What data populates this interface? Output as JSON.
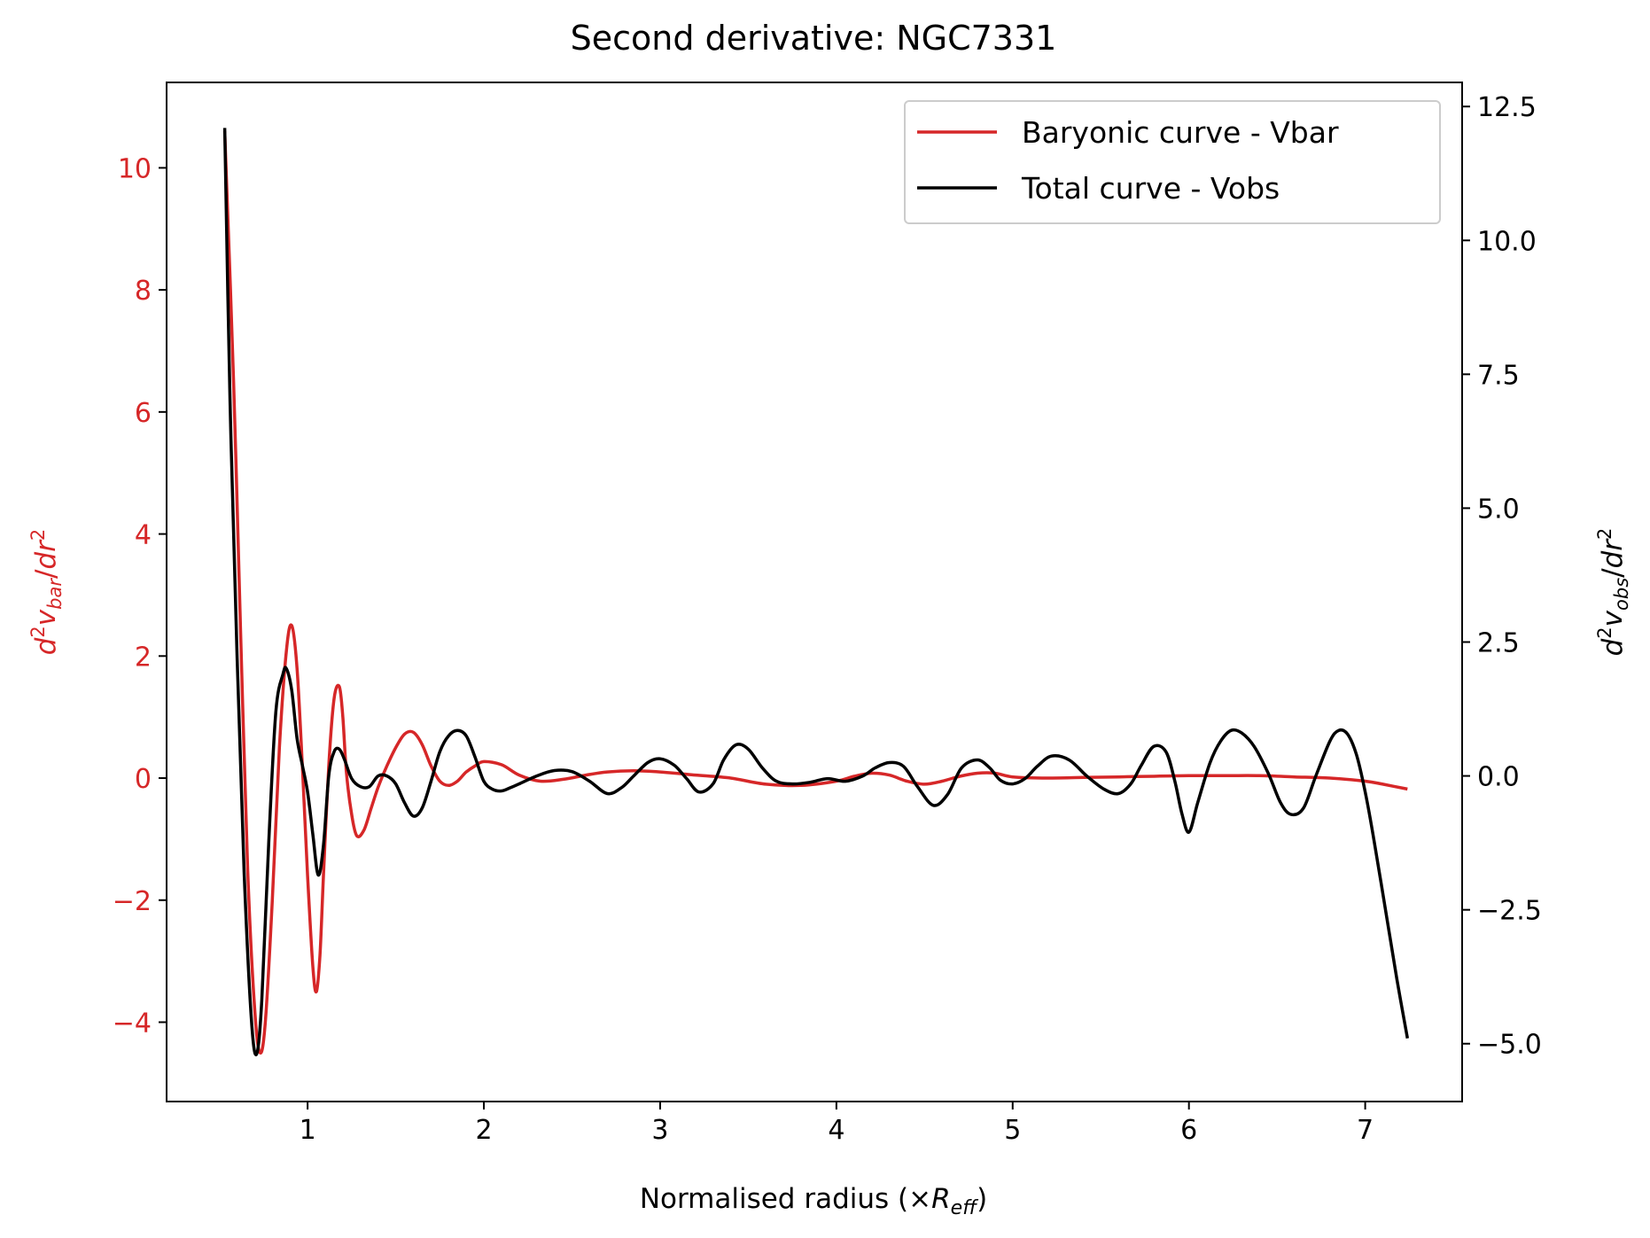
{
  "chart_data": {
    "type": "line",
    "title": "Second derivative: NGC7331",
    "xlabel": "Normalised radius (×R_eff)",
    "xlabel_parts": {
      "prefix": "Normalised radius (×",
      "var": "R",
      "sub": "eff",
      "suffix": ")"
    },
    "ylabel_left": "d²v_bar/dr²",
    "ylabel_right": "d²v_obs/dr²",
    "xlim": [
      0.2,
      7.55
    ],
    "ylim_left": [
      -5.3,
      11.4
    ],
    "ylim_right": [
      -6.08,
      12.95
    ],
    "x_ticks": [
      "1",
      "2",
      "3",
      "4",
      "5",
      "6",
      "7"
    ],
    "y_ticks_left": [
      "−4",
      "−2",
      "0",
      "2",
      "4",
      "6",
      "8",
      "10"
    ],
    "y_ticks_right": [
      "−5.0",
      "−2.5",
      "0.0",
      "2.5",
      "5.0",
      "7.5",
      "10.0",
      "12.5"
    ],
    "grid": false,
    "legend_position": "upper right",
    "colors": {
      "vbar": "#d62728",
      "vobs": "#000000",
      "left_axis": "#d62728"
    },
    "series": [
      {
        "name": "Baryonic curve - Vbar",
        "axis": "left",
        "color": "#d62728",
        "x": [
          0.53,
          0.58,
          0.62,
          0.66,
          0.7,
          0.73,
          0.76,
          0.8,
          0.84,
          0.88,
          0.91,
          0.94,
          0.97,
          1.0,
          1.03,
          1.05,
          1.07,
          1.09,
          1.12,
          1.15,
          1.18,
          1.2,
          1.22,
          1.25,
          1.28,
          1.32,
          1.36,
          1.4,
          1.45,
          1.5,
          1.55,
          1.6,
          1.65,
          1.7,
          1.75,
          1.8,
          1.85,
          1.9,
          1.95,
          2.0,
          2.1,
          2.2,
          2.32,
          2.45,
          2.58,
          2.7,
          2.85,
          3.0,
          3.2,
          3.4,
          3.6,
          3.8,
          4.0,
          4.1,
          4.2,
          4.3,
          4.4,
          4.5,
          4.6,
          4.7,
          4.8,
          4.9,
          5.0,
          5.2,
          5.4,
          5.6,
          5.8,
          6.0,
          6.2,
          6.4,
          6.6,
          6.8,
          7.0,
          7.1,
          7.24
        ],
        "y": [
          10.6,
          6.5,
          2.4,
          -1.5,
          -3.8,
          -4.5,
          -4.0,
          -2.0,
          0.5,
          2.1,
          2.5,
          1.8,
          0.2,
          -1.6,
          -3.1,
          -3.5,
          -2.9,
          -1.6,
          0.2,
          1.3,
          1.5,
          1.0,
          0.1,
          -0.6,
          -0.95,
          -0.85,
          -0.5,
          -0.15,
          0.2,
          0.5,
          0.72,
          0.75,
          0.55,
          0.2,
          -0.05,
          -0.12,
          -0.05,
          0.1,
          0.2,
          0.27,
          0.22,
          0.05,
          -0.05,
          -0.02,
          0.05,
          0.1,
          0.12,
          0.1,
          0.05,
          0.0,
          -0.1,
          -0.12,
          -0.05,
          0.03,
          0.08,
          0.05,
          -0.05,
          -0.1,
          -0.05,
          0.03,
          0.08,
          0.08,
          0.02,
          0.0,
          0.01,
          0.02,
          0.03,
          0.04,
          0.04,
          0.04,
          0.02,
          0.0,
          -0.05,
          -0.1,
          -0.18
        ]
      },
      {
        "name": "Total curve - Vobs",
        "axis": "right",
        "color": "#000000",
        "x": [
          0.53,
          0.56,
          0.6,
          0.64,
          0.68,
          0.71,
          0.74,
          0.78,
          0.82,
          0.86,
          0.88,
          0.91,
          0.94,
          0.97,
          1.0,
          1.03,
          1.06,
          1.09,
          1.12,
          1.15,
          1.18,
          1.21,
          1.25,
          1.3,
          1.35,
          1.4,
          1.45,
          1.5,
          1.55,
          1.6,
          1.65,
          1.7,
          1.75,
          1.8,
          1.85,
          1.9,
          1.95,
          2.0,
          2.05,
          2.1,
          2.15,
          2.2,
          2.3,
          2.4,
          2.5,
          2.6,
          2.7,
          2.78,
          2.85,
          2.93,
          3.0,
          3.08,
          3.15,
          3.22,
          3.3,
          3.36,
          3.43,
          3.5,
          3.58,
          3.66,
          3.75,
          3.85,
          3.95,
          4.05,
          4.15,
          4.22,
          4.3,
          4.38,
          4.46,
          4.55,
          4.63,
          4.71,
          4.8,
          4.87,
          4.93,
          5.0,
          5.07,
          5.14,
          5.22,
          5.32,
          5.42,
          5.52,
          5.6,
          5.67,
          5.73,
          5.8,
          5.87,
          5.92,
          5.96,
          6.0,
          6.05,
          6.12,
          6.18,
          6.24,
          6.3,
          6.37,
          6.45,
          6.52,
          6.58,
          6.65,
          6.72,
          6.8,
          6.85,
          6.9,
          6.95,
          7.0,
          7.05,
          7.12,
          7.18,
          7.24
        ],
        "y": [
          12.1,
          7.0,
          2.2,
          -1.8,
          -4.5,
          -5.2,
          -4.2,
          -1.2,
          1.2,
          1.9,
          2.0,
          1.6,
          0.7,
          0.2,
          -0.3,
          -1.1,
          -1.85,
          -1.3,
          0.0,
          0.45,
          0.5,
          0.3,
          -0.05,
          -0.2,
          -0.2,
          0.0,
          0.0,
          -0.15,
          -0.5,
          -0.75,
          -0.6,
          -0.1,
          0.45,
          0.75,
          0.85,
          0.75,
          0.35,
          -0.1,
          -0.25,
          -0.28,
          -0.22,
          -0.15,
          0.0,
          0.1,
          0.08,
          -0.1,
          -0.33,
          -0.22,
          0.0,
          0.25,
          0.32,
          0.2,
          -0.05,
          -0.3,
          -0.15,
          0.3,
          0.58,
          0.5,
          0.15,
          -0.1,
          -0.15,
          -0.12,
          -0.05,
          -0.1,
          0.0,
          0.15,
          0.25,
          0.18,
          -0.2,
          -0.55,
          -0.35,
          0.15,
          0.3,
          0.15,
          -0.08,
          -0.15,
          -0.05,
          0.18,
          0.37,
          0.3,
          0.0,
          -0.25,
          -0.33,
          -0.15,
          0.2,
          0.55,
          0.45,
          -0.1,
          -0.7,
          -1.05,
          -0.5,
          0.25,
          0.65,
          0.85,
          0.8,
          0.55,
          0.05,
          -0.5,
          -0.72,
          -0.6,
          0.0,
          0.65,
          0.85,
          0.78,
          0.4,
          -0.3,
          -1.2,
          -2.6,
          -3.8,
          -4.9
        ]
      }
    ]
  }
}
